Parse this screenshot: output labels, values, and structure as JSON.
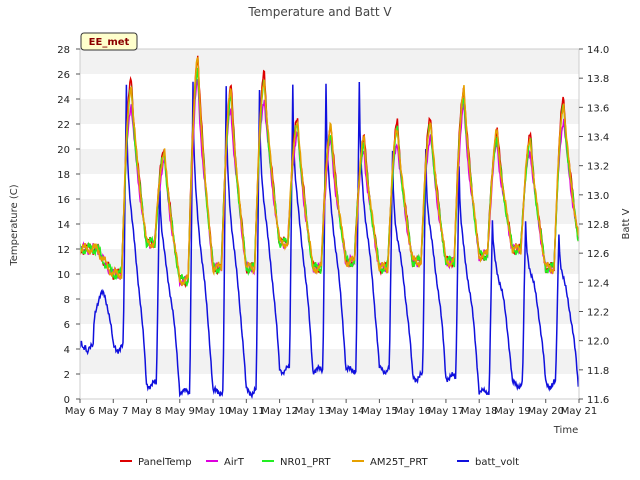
{
  "chart_data": {
    "type": "line",
    "title": "Temperature and Batt V",
    "xlabel": "Time",
    "ylabel": "Temperature (C)",
    "y2label": "Batt V",
    "badge": "EE_met",
    "x_ticks": [
      "May 6",
      "May 7",
      "May 8",
      "May 9",
      "May 10",
      "May 11",
      "May 12",
      "May 13",
      "May 14",
      "May 15",
      "May 16",
      "May 17",
      "May 18",
      "May 19",
      "May 20",
      "May 21"
    ],
    "xlim": [
      6,
      21
    ],
    "ylim": [
      0,
      28
    ],
    "y_ticks": [
      0,
      2,
      4,
      6,
      8,
      10,
      12,
      14,
      16,
      18,
      20,
      22,
      24,
      26,
      28
    ],
    "y2lim": [
      11.6,
      14.0
    ],
    "y2_ticks": [
      11.6,
      11.8,
      12.0,
      12.2,
      12.4,
      12.6,
      12.8,
      13.0,
      13.2,
      13.4,
      13.6,
      13.8,
      14.0
    ],
    "grid": "horizontal bands",
    "legend_position": "bottom",
    "daily": {
      "days": [
        6,
        7,
        8,
        9,
        10,
        11,
        12,
        13,
        14,
        15,
        16,
        17,
        18,
        19,
        20
      ],
      "start_temp": 12.0,
      "temp_min": [
        12.0,
        10.0,
        12.5,
        9.5,
        10.5,
        10.5,
        12.5,
        10.5,
        11.0,
        10.5,
        11.0,
        11.0,
        11.5,
        12.0,
        10.5
      ],
      "temp_max": [
        null,
        25.5,
        20.0,
        27.5,
        25.0,
        26.0,
        22.5,
        22.0,
        21.0,
        22.0,
        22.5,
        25.0,
        21.5,
        21.0,
        24.0
      ],
      "batt_min": [
        11.95,
        11.95,
        11.7,
        11.65,
        11.65,
        11.65,
        11.8,
        11.8,
        11.8,
        11.8,
        11.75,
        11.75,
        11.65,
        11.7,
        11.7
      ],
      "batt_max": [
        null,
        13.85,
        13.2,
        13.85,
        13.82,
        13.82,
        13.85,
        13.85,
        13.85,
        13.35,
        13.4,
        13.28,
        12.85,
        12.85,
        12.8
      ],
      "end_batt": 11.62,
      "end_temp": 12.5
    },
    "series": [
      {
        "name": "PanelTemp",
        "color": "#dd0000",
        "scale": 1.0
      },
      {
        "name": "AirT",
        "color": "#dd00dd",
        "scale": 0.88
      },
      {
        "name": "NR01_PRT",
        "color": "#22ee22",
        "scale": 0.95
      },
      {
        "name": "AM25T_PRT",
        "color": "#e6a000",
        "scale": 0.98
      },
      {
        "name": "batt_volt",
        "color": "#1010dd",
        "axis": "y2"
      }
    ]
  }
}
